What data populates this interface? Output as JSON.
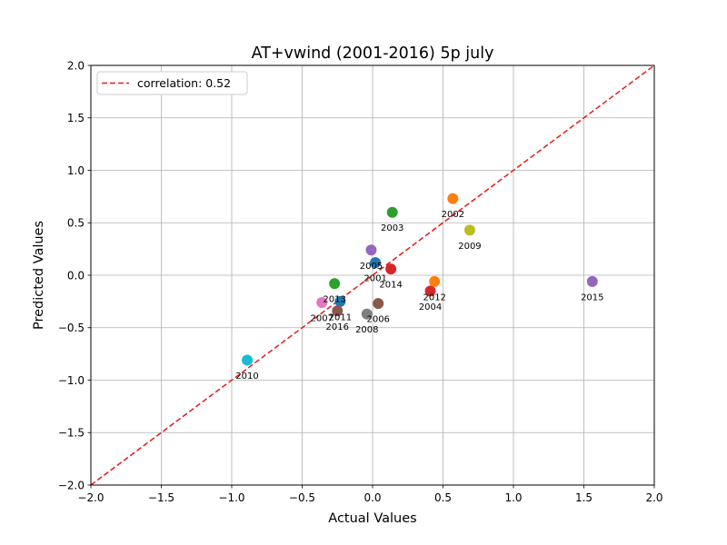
{
  "chart_data": {
    "type": "scatter",
    "title": "AT+vwind (2001-2016) 5p july",
    "xlabel": "Actual Values",
    "ylabel": "Predicted Values",
    "xlim": [
      -2.0,
      2.0
    ],
    "ylim": [
      -2.0,
      2.0
    ],
    "xticks": [
      -2.0,
      -1.5,
      -1.0,
      -0.5,
      0.0,
      0.5,
      1.0,
      1.5,
      2.0
    ],
    "yticks": [
      -2.0,
      -1.5,
      -1.0,
      -0.5,
      0.0,
      0.5,
      1.0,
      1.5,
      2.0
    ],
    "xtick_labels": [
      "−2.0",
      "−1.5",
      "−1.0",
      "−0.5",
      "0.0",
      "0.5",
      "1.0",
      "1.5",
      "2.0"
    ],
    "ytick_labels": [
      "−2.0",
      "−1.5",
      "−1.0",
      "−0.5",
      "0.0",
      "0.5",
      "1.0",
      "1.5",
      "2.0"
    ],
    "grid": true,
    "legend": {
      "location": "upper left",
      "entries": [
        {
          "label": "correlation: 0.52",
          "style": "dashed",
          "color": "#e41a1c"
        }
      ]
    },
    "reference_line": {
      "from": [
        -2.0,
        -2.0
      ],
      "to": [
        2.0,
        2.0
      ],
      "color": "#e41a1c",
      "style": "dashed"
    },
    "points": [
      {
        "label": "2001",
        "x": 0.02,
        "y": 0.12,
        "color": "#1f77b4"
      },
      {
        "label": "2002",
        "x": 0.57,
        "y": 0.73,
        "color": "#ff7f0e"
      },
      {
        "label": "2003",
        "x": 0.14,
        "y": 0.6,
        "color": "#2ca02c"
      },
      {
        "label": "2004",
        "x": 0.41,
        "y": -0.15,
        "color": "#d62728"
      },
      {
        "label": "2005",
        "x": -0.01,
        "y": 0.24,
        "color": "#9467bd"
      },
      {
        "label": "2006",
        "x": 0.04,
        "y": -0.27,
        "color": "#8c564b"
      },
      {
        "label": "2007",
        "x": -0.36,
        "y": -0.26,
        "color": "#e377c2"
      },
      {
        "label": "2008",
        "x": -0.04,
        "y": -0.37,
        "color": "#7f7f7f"
      },
      {
        "label": "2009",
        "x": 0.69,
        "y": 0.43,
        "color": "#bcbd22"
      },
      {
        "label": "2010",
        "x": -0.89,
        "y": -0.81,
        "color": "#17becf"
      },
      {
        "label": "2011",
        "x": -0.23,
        "y": -0.25,
        "color": "#1f77b4"
      },
      {
        "label": "2012",
        "x": 0.44,
        "y": -0.06,
        "color": "#ff7f0e"
      },
      {
        "label": "2013",
        "x": -0.27,
        "y": -0.08,
        "color": "#2ca02c"
      },
      {
        "label": "2014",
        "x": 0.13,
        "y": 0.06,
        "color": "#d62728"
      },
      {
        "label": "2015",
        "x": 1.56,
        "y": -0.06,
        "color": "#9467bd"
      },
      {
        "label": "2016",
        "x": -0.25,
        "y": -0.34,
        "color": "#8c564b"
      }
    ]
  }
}
